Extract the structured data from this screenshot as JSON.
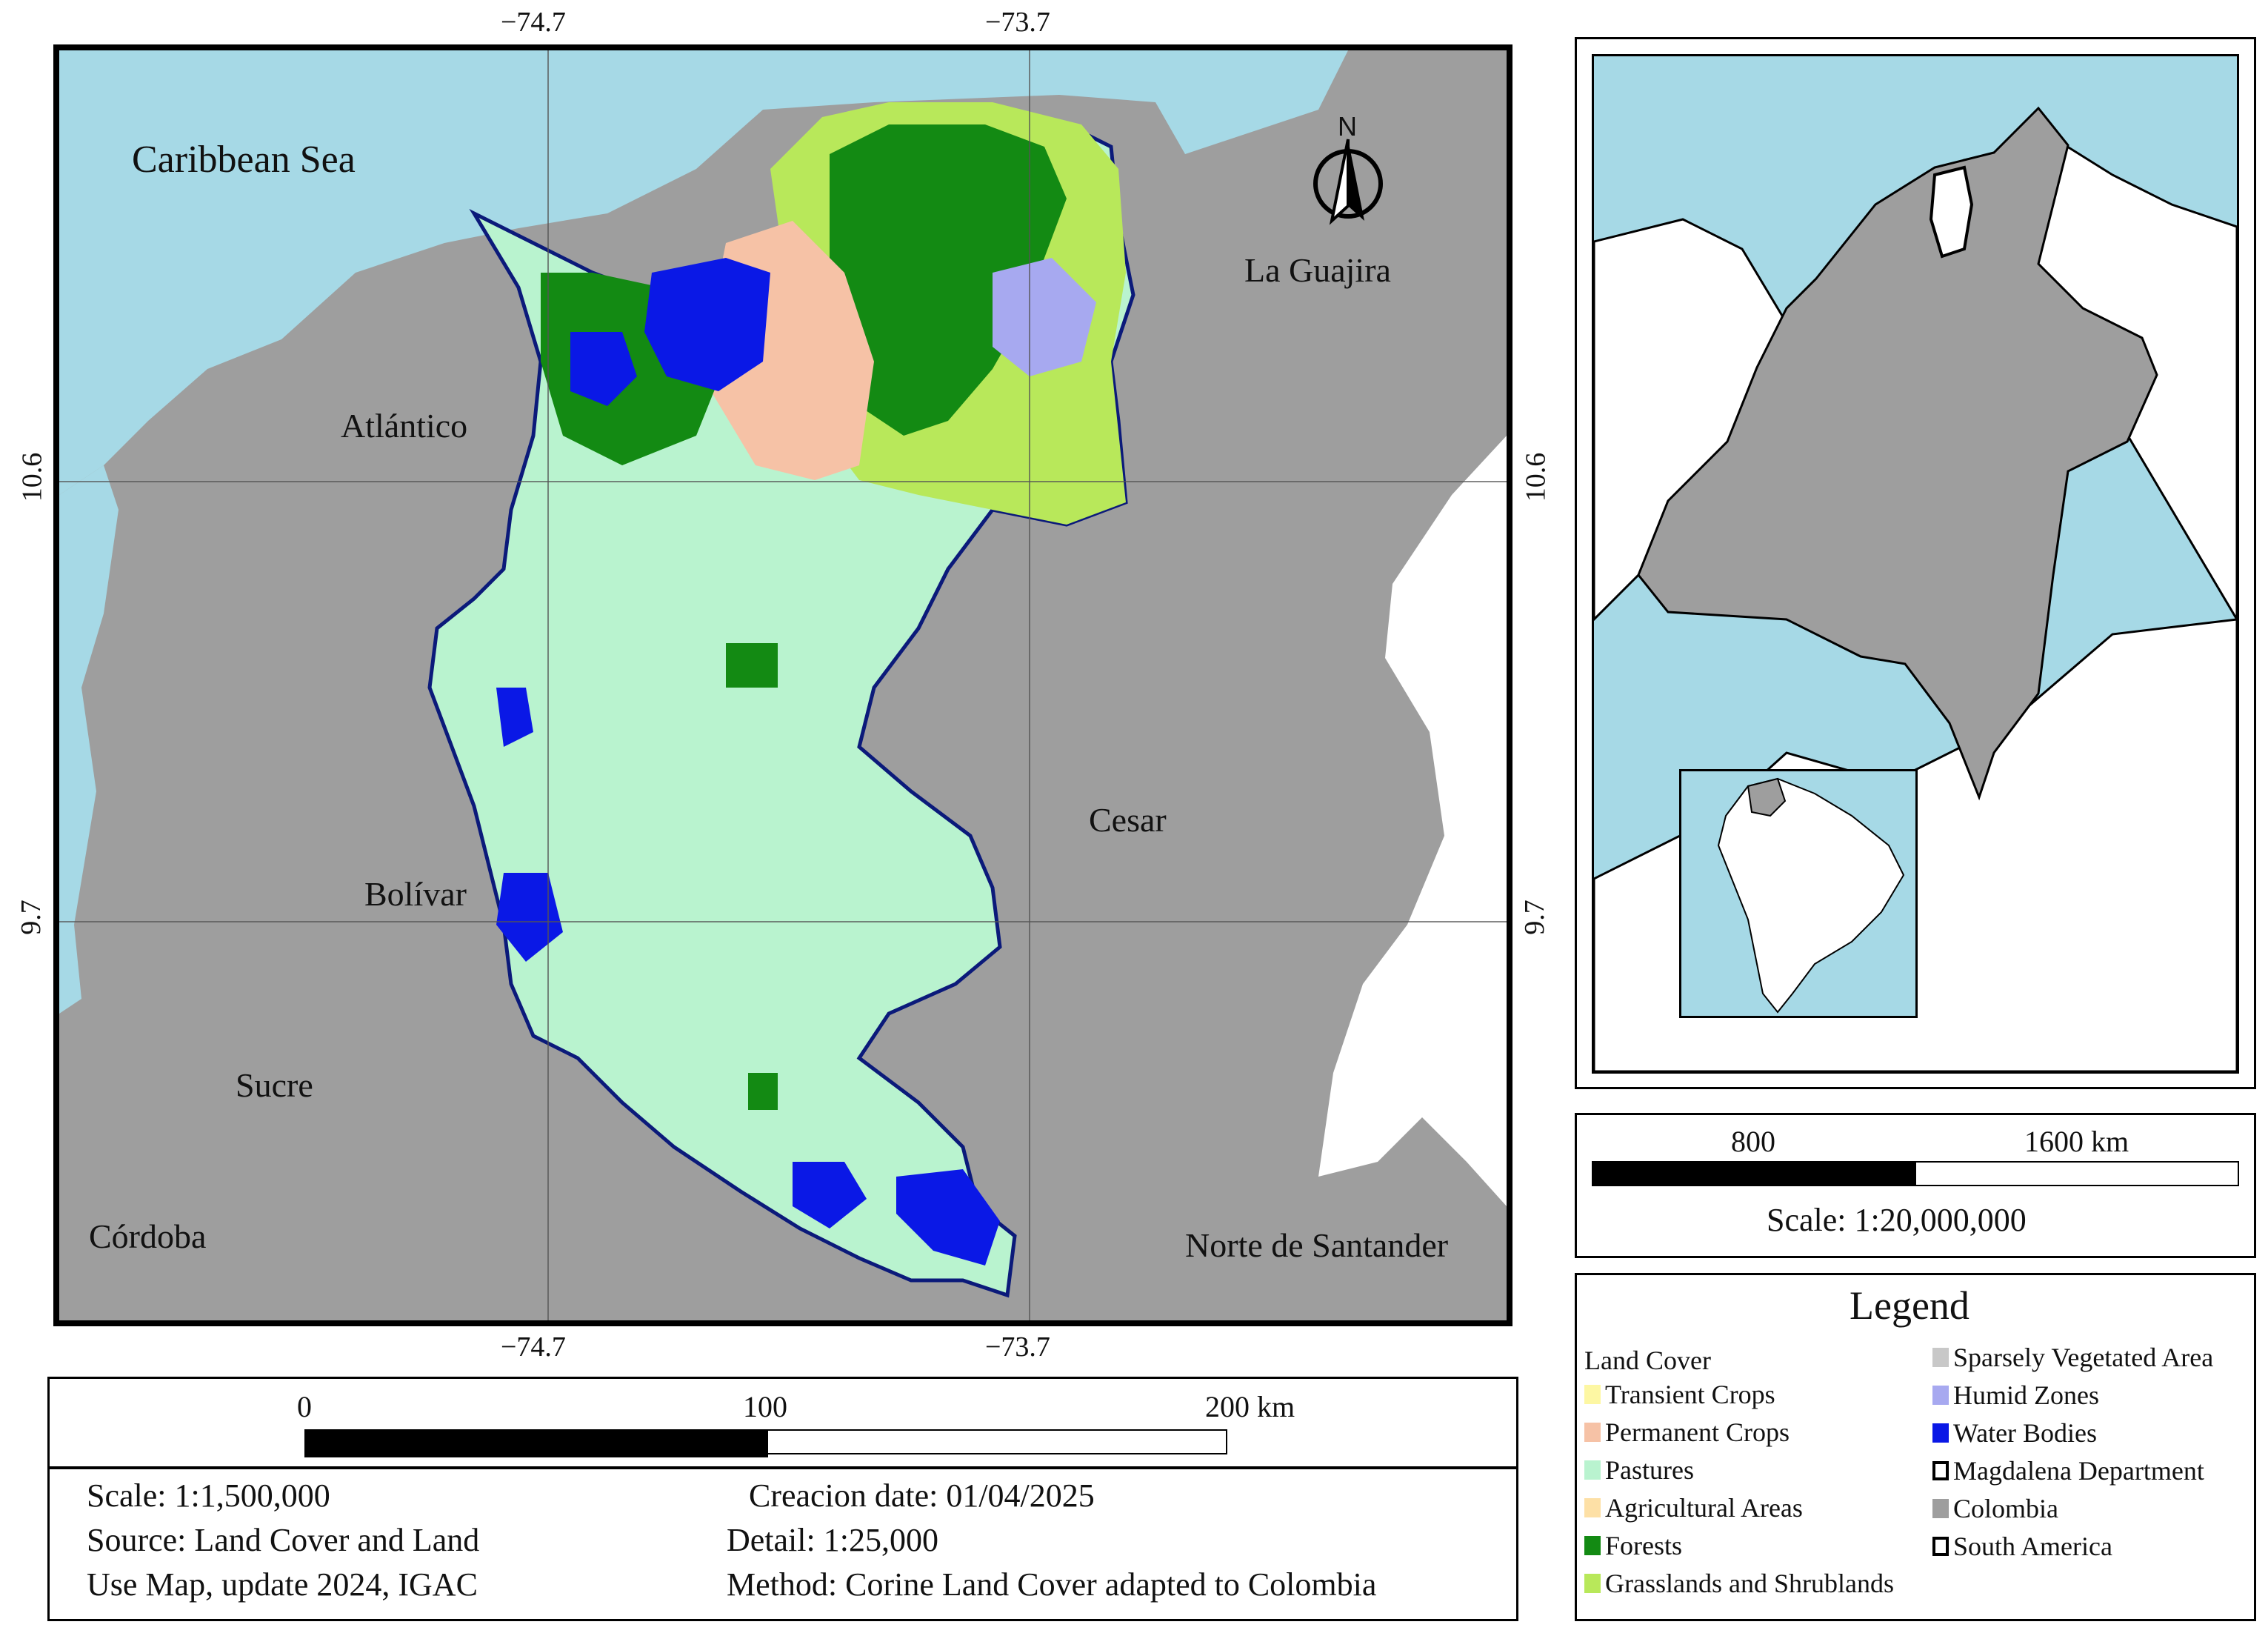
{
  "map": {
    "graticule_top": [
      "−74.7",
      "−73.7"
    ],
    "graticule_bottom": [
      "−74.7",
      "−73.7"
    ],
    "graticule_left": [
      "10.6",
      "9.7"
    ],
    "graticule_right": [
      "10.6",
      "9.7"
    ],
    "north_label": "N",
    "place_labels": {
      "sea": "Caribbean Sea",
      "guajira": "La Guajira",
      "atlantico": "Atlántico",
      "cesar": "Cesar",
      "bolivar": "Bolívar",
      "sucre": "Sucre",
      "cordoba": "Córdoba",
      "norte": "Norte de Santander"
    },
    "colors": {
      "sea": "#a6d9e6",
      "land": "#9e9e9e",
      "pastures": "#b9f3cf",
      "forests": "#138a13",
      "grass": "#b8e85a",
      "water": "#0a18e6",
      "humid": "#a7a9f0",
      "permanent": "#f6c2a6"
    }
  },
  "main_scale": {
    "ticks": [
      "0",
      "100",
      "200 km"
    ]
  },
  "metadata": {
    "scale": "Scale: 1:1,500,000",
    "source_line1": "Source: Land Cover and Land",
    "source_line2": "Use Map, update 2024, IGAC",
    "date": "Creacion date: 01/04/2025",
    "detail": "Detail: 1:25,000",
    "method": "Method: Corine Land Cover adapted to Colombia"
  },
  "inset_scale": {
    "ticks": [
      "800",
      "1600 km"
    ],
    "scale": "Scale: 1:20,000,000"
  },
  "legend": {
    "title": "Legend",
    "group": "Land Cover",
    "items_left": [
      {
        "label": "Transient Crops",
        "color": "#fdf7a3"
      },
      {
        "label": "Permanent Crops",
        "color": "#f6c2a6"
      },
      {
        "label": "Pastures",
        "color": "#b9f3cf"
      },
      {
        "label": "Agricultural Areas",
        "color": "#fde0a6"
      },
      {
        "label": "Forests",
        "color": "#138a13"
      },
      {
        "label": "Grasslands and Shrublands",
        "color": "#b8e85a"
      }
    ],
    "items_right": [
      {
        "label": "Sparsely Vegetated Area",
        "color": "#c8c8c8"
      },
      {
        "label": "Humid Zones",
        "color": "#a7a9f0"
      },
      {
        "label": "Water Bodies",
        "color": "#0a18e6"
      },
      {
        "label": "Magdalena Department",
        "color": "#ffffff"
      },
      {
        "label": "Colombia",
        "color": "#9e9e9e"
      },
      {
        "label": "South America",
        "color": "#ffffff"
      }
    ]
  }
}
